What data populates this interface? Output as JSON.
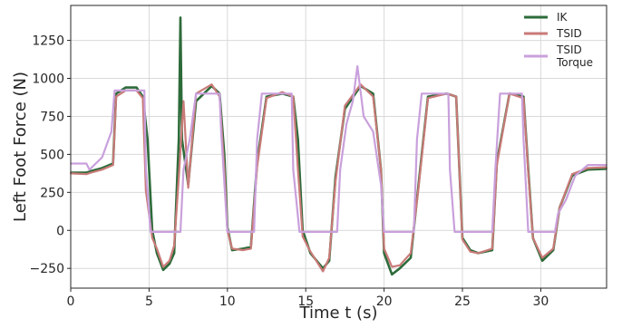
{
  "chart_data": {
    "type": "line",
    "title": "",
    "xlabel": "Time t (s)",
    "ylabel": "Left Foot Force (N)",
    "xlim": [
      0,
      34.2
    ],
    "ylim": [
      -380,
      1480
    ],
    "xticks": [
      "0",
      "5",
      "10",
      "15",
      "20",
      "25",
      "30"
    ],
    "yticks": [
      "−250",
      "0",
      "250",
      "500",
      "750",
      "1000",
      "1250"
    ],
    "grid": true,
    "legend": {
      "position": "top-right"
    },
    "colors": {
      "IK": "#2d6b3a",
      "TSID": "#c97a78",
      "TSID Torque": "#c9a0dc"
    },
    "series": [
      {
        "name": "IK",
        "line_lines": [
          "IK"
        ],
        "points": [
          [
            0,
            380
          ],
          [
            1,
            380
          ],
          [
            1.3,
            390
          ],
          [
            2,
            410
          ],
          [
            2.7,
            440
          ],
          [
            2.9,
            900
          ],
          [
            3.5,
            940
          ],
          [
            4.2,
            940
          ],
          [
            4.6,
            880
          ],
          [
            4.9,
            600
          ],
          [
            5.2,
            0
          ],
          [
            5.5,
            -150
          ],
          [
            5.9,
            -260
          ],
          [
            6.3,
            -220
          ],
          [
            6.6,
            -150
          ],
          [
            6.9,
            600
          ],
          [
            7.0,
            1400
          ],
          [
            7.1,
            600
          ],
          [
            7.5,
            300
          ],
          [
            8,
            850
          ],
          [
            9,
            950
          ],
          [
            9.5,
            900
          ],
          [
            9.8,
            500
          ],
          [
            10,
            20
          ],
          [
            10.3,
            -130
          ],
          [
            11,
            -120
          ],
          [
            11.5,
            -110
          ],
          [
            11.9,
            450
          ],
          [
            12.5,
            880
          ],
          [
            13.5,
            900
          ],
          [
            14.2,
            880
          ],
          [
            14.5,
            600
          ],
          [
            14.8,
            0
          ],
          [
            15.3,
            -150
          ],
          [
            16.1,
            -250
          ],
          [
            16.5,
            -200
          ],
          [
            16.9,
            350
          ],
          [
            17.5,
            800
          ],
          [
            18.5,
            950
          ],
          [
            19.3,
            900
          ],
          [
            19.8,
            400
          ],
          [
            20,
            -150
          ],
          [
            20.5,
            -290
          ],
          [
            21,
            -250
          ],
          [
            21.7,
            -180
          ],
          [
            22.2,
            300
          ],
          [
            22.8,
            880
          ],
          [
            24,
            900
          ],
          [
            24.6,
            880
          ],
          [
            25,
            -50
          ],
          [
            25.5,
            -130
          ],
          [
            26,
            -150
          ],
          [
            26.9,
            -130
          ],
          [
            27.2,
            450
          ],
          [
            28,
            900
          ],
          [
            28.9,
            880
          ],
          [
            29.2,
            400
          ],
          [
            29.5,
            -50
          ],
          [
            30.1,
            -200
          ],
          [
            30.8,
            -130
          ],
          [
            31.2,
            150
          ],
          [
            32,
            360
          ],
          [
            33,
            400
          ],
          [
            34.2,
            405
          ]
        ]
      },
      {
        "name": "TSID",
        "line_lines": [
          "TSID"
        ],
        "points": [
          [
            0,
            375
          ],
          [
            1,
            370
          ],
          [
            1.3,
            380
          ],
          [
            2,
            400
          ],
          [
            2.7,
            430
          ],
          [
            2.9,
            880
          ],
          [
            3.5,
            920
          ],
          [
            4.2,
            920
          ],
          [
            4.6,
            870
          ],
          [
            4.8,
            260
          ],
          [
            5.2,
            -50
          ],
          [
            5.5,
            -120
          ],
          [
            5.9,
            -240
          ],
          [
            6.3,
            -200
          ],
          [
            6.6,
            -100
          ],
          [
            6.9,
            350
          ],
          [
            7.2,
            850
          ],
          [
            7.5,
            280
          ],
          [
            8,
            900
          ],
          [
            9,
            960
          ],
          [
            9.5,
            880
          ],
          [
            9.8,
            400
          ],
          [
            10,
            0
          ],
          [
            10.3,
            -120
          ],
          [
            11,
            -130
          ],
          [
            11.5,
            -120
          ],
          [
            11.9,
            420
          ],
          [
            12.5,
            870
          ],
          [
            13.5,
            910
          ],
          [
            14.2,
            880
          ],
          [
            14.5,
            400
          ],
          [
            14.8,
            -40
          ],
          [
            15.3,
            -140
          ],
          [
            16.1,
            -270
          ],
          [
            16.5,
            -180
          ],
          [
            16.9,
            320
          ],
          [
            17.5,
            820
          ],
          [
            18.5,
            960
          ],
          [
            19.3,
            880
          ],
          [
            19.8,
            400
          ],
          [
            20,
            -120
          ],
          [
            20.5,
            -240
          ],
          [
            21,
            -230
          ],
          [
            21.7,
            -150
          ],
          [
            22.2,
            280
          ],
          [
            22.8,
            870
          ],
          [
            24,
            900
          ],
          [
            24.6,
            880
          ],
          [
            25,
            -60
          ],
          [
            25.5,
            -140
          ],
          [
            26,
            -150
          ],
          [
            26.9,
            -120
          ],
          [
            27.2,
            430
          ],
          [
            28,
            900
          ],
          [
            28.9,
            870
          ],
          [
            29.2,
            380
          ],
          [
            29.5,
            -50
          ],
          [
            30.1,
            -180
          ],
          [
            30.8,
            -120
          ],
          [
            31.2,
            150
          ],
          [
            32,
            370
          ],
          [
            33,
            410
          ],
          [
            34.2,
            415
          ]
        ]
      },
      {
        "name": "TSID Torque",
        "line_lines": [
          "TSID",
          "Torque"
        ],
        "points": [
          [
            0,
            440
          ],
          [
            1,
            440
          ],
          [
            1.2,
            400
          ],
          [
            2,
            480
          ],
          [
            2.6,
            650
          ],
          [
            2.8,
            920
          ],
          [
            4.7,
            920
          ],
          [
            4.8,
            400
          ],
          [
            5.1,
            -10
          ],
          [
            7.0,
            -10
          ],
          [
            7.2,
            400
          ],
          [
            7.6,
            600
          ],
          [
            8.0,
            900
          ],
          [
            9.5,
            900
          ],
          [
            9.6,
            650
          ],
          [
            10,
            -10
          ],
          [
            11.7,
            -10
          ],
          [
            11.9,
            600
          ],
          [
            12.2,
            900
          ],
          [
            14.1,
            900
          ],
          [
            14.2,
            400
          ],
          [
            14.6,
            -10
          ],
          [
            17.0,
            -10
          ],
          [
            17.2,
            400
          ],
          [
            17.6,
            700
          ],
          [
            18.0,
            850
          ],
          [
            18.3,
            1080
          ],
          [
            18.7,
            750
          ],
          [
            19.3,
            650
          ],
          [
            19.8,
            300
          ],
          [
            20.0,
            -10
          ],
          [
            21.9,
            -10
          ],
          [
            22.1,
            600
          ],
          [
            22.4,
            900
          ],
          [
            24.1,
            900
          ],
          [
            24.2,
            400
          ],
          [
            24.5,
            -10
          ],
          [
            26.9,
            -10
          ],
          [
            27.1,
            400
          ],
          [
            27.4,
            900
          ],
          [
            28.8,
            900
          ],
          [
            28.9,
            600
          ],
          [
            29.2,
            -10
          ],
          [
            30.9,
            -10
          ],
          [
            31.1,
            110
          ],
          [
            31.6,
            200
          ],
          [
            32.2,
            360
          ],
          [
            33,
            430
          ],
          [
            34.2,
            430
          ]
        ]
      }
    ]
  }
}
